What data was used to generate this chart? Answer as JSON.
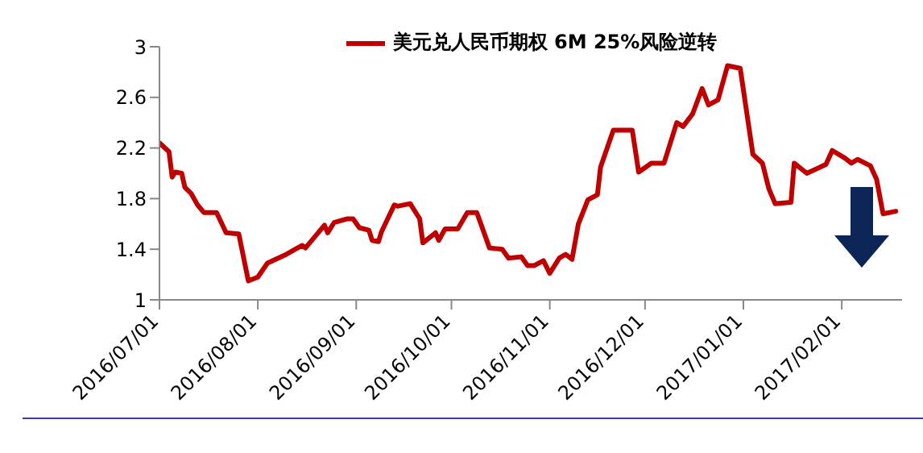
{
  "chart_data": {
    "type": "line",
    "legend": "top",
    "marker": "none",
    "line_style": "solid",
    "grid": false,
    "xlim": [
      "2016-07-01",
      "2017-02-20"
    ],
    "xticks": [
      {
        "value": "2016-07-01",
        "label": "2016/07/01"
      },
      {
        "value": "2016-08-01",
        "label": "2016/08/01"
      },
      {
        "value": "2016-09-01",
        "label": "2016/09/01"
      },
      {
        "value": "2016-10-01",
        "label": "2016/10/01"
      },
      {
        "value": "2016-11-01",
        "label": "2016/11/01"
      },
      {
        "value": "2016-12-01",
        "label": "2016/12/01"
      },
      {
        "value": "2017-01-01",
        "label": "2017/01/01"
      },
      {
        "value": "2017-02-01",
        "label": "2017/02/01"
      }
    ],
    "ylim": [
      1,
      3
    ],
    "yticks": [
      1,
      1.4,
      1.8,
      2.2,
      2.6,
      3
    ],
    "x": [
      "2016-07-01",
      "2016-07-04",
      "2016-07-05",
      "2016-07-06",
      "2016-07-08",
      "2016-07-09",
      "2016-07-11",
      "2016-07-13",
      "2016-07-15",
      "2016-07-19",
      "2016-07-22",
      "2016-07-26",
      "2016-07-29",
      "2016-08-01",
      "2016-08-04",
      "2016-08-10",
      "2016-08-15",
      "2016-08-16",
      "2016-08-22",
      "2016-08-23",
      "2016-08-25",
      "2016-08-29",
      "2016-08-31",
      "2016-09-02",
      "2016-09-05",
      "2016-09-06",
      "2016-09-08",
      "2016-09-09",
      "2016-09-13",
      "2016-09-14",
      "2016-09-18",
      "2016-09-21",
      "2016-09-22",
      "2016-09-26",
      "2016-09-27",
      "2016-09-29",
      "2016-10-03",
      "2016-10-06",
      "2016-10-09",
      "2016-10-13",
      "2016-10-17",
      "2016-10-19",
      "2016-10-23",
      "2016-10-25",
      "2016-10-27",
      "2016-10-30",
      "2016-11-01",
      "2016-11-04",
      "2016-11-06",
      "2016-11-08",
      "2016-11-10",
      "2016-11-13",
      "2016-11-16",
      "2016-11-17",
      "2016-11-21",
      "2016-11-27",
      "2016-11-29",
      "2016-12-03",
      "2016-12-07",
      "2016-12-11",
      "2016-12-13",
      "2016-12-16",
      "2016-12-19",
      "2016-12-21",
      "2016-12-24",
      "2016-12-27",
      "2016-12-31",
      "2017-01-04",
      "2017-01-07",
      "2017-01-09",
      "2017-01-11",
      "2017-01-16",
      "2017-01-17",
      "2017-01-21",
      "2017-01-27",
      "2017-01-29",
      "2017-02-02",
      "2017-02-04",
      "2017-02-06",
      "2017-02-10",
      "2017-02-12",
      "2017-02-14",
      "2017-02-18"
    ],
    "series": [
      {
        "name": "美元兑人民币期权 6M 25%风险逆转",
        "color": "#c00000",
        "values": [
          2.24,
          2.17,
          1.97,
          2.01,
          2.0,
          1.89,
          1.84,
          1.75,
          1.69,
          1.69,
          1.53,
          1.52,
          1.15,
          1.18,
          1.29,
          1.36,
          1.43,
          1.41,
          1.59,
          1.53,
          1.61,
          1.64,
          1.64,
          1.57,
          1.55,
          1.47,
          1.46,
          1.54,
          1.75,
          1.74,
          1.76,
          1.64,
          1.45,
          1.53,
          1.47,
          1.56,
          1.56,
          1.69,
          1.69,
          1.41,
          1.4,
          1.33,
          1.34,
          1.27,
          1.27,
          1.31,
          1.21,
          1.33,
          1.36,
          1.32,
          1.6,
          1.79,
          1.83,
          2.05,
          2.34,
          2.34,
          2.01,
          2.08,
          2.08,
          2.4,
          2.37,
          2.47,
          2.67,
          2.54,
          2.58,
          2.85,
          2.83,
          2.15,
          2.08,
          1.88,
          1.76,
          1.77,
          2.08,
          2.0,
          2.07,
          2.18,
          2.12,
          2.08,
          2.11,
          2.06,
          1.95,
          1.68,
          1.7
        ]
      }
    ]
  }
}
